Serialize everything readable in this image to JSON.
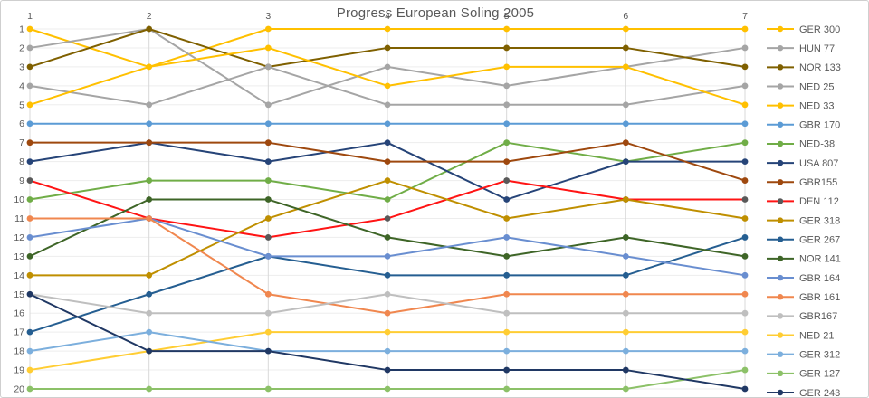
{
  "title": "Progress European Soling 2005",
  "chart_data": {
    "type": "line",
    "title": "Progress European Soling 2005",
    "xlabel": "",
    "ylabel": "",
    "x": [
      1,
      2,
      3,
      4,
      5,
      6,
      7
    ],
    "x_tick_labels": [
      "1",
      "2",
      "3",
      "4",
      "5",
      "6",
      "7"
    ],
    "y_axis": {
      "min": 1,
      "max": 20,
      "inverted": true,
      "ticks": [
        1,
        2,
        3,
        4,
        5,
        6,
        7,
        8,
        9,
        10,
        11,
        12,
        13,
        14,
        15,
        16,
        17,
        18,
        19,
        20
      ]
    },
    "grid": true,
    "legend_position": "right",
    "grid_color_h": "#ededed",
    "grid_color_v": "#d9d9d9",
    "tick_color": "#595959",
    "series": [
      {
        "name": "GER 300",
        "color": "#FFC000",
        "ranks": [
          1,
          3,
          1,
          1,
          1,
          1,
          1
        ]
      },
      {
        "name": "HUN 77",
        "color": "#A5A5A5",
        "ranks": [
          2,
          1,
          5,
          3,
          4,
          3,
          2
        ]
      },
      {
        "name": "NOR 133",
        "color": "#7F6000",
        "ranks": [
          3,
          1,
          3,
          2,
          2,
          2,
          3
        ]
      },
      {
        "name": "NED 25",
        "color": "#A5A5A5",
        "ranks": [
          4,
          5,
          3,
          5,
          5,
          5,
          4
        ]
      },
      {
        "name": "NED 33",
        "color": "#FFC000",
        "ranks": [
          5,
          3,
          2,
          4,
          3,
          3,
          5
        ]
      },
      {
        "name": "GBR 170",
        "color": "#5B9BD5",
        "ranks": [
          6,
          6,
          6,
          6,
          6,
          6,
          6
        ]
      },
      {
        "name": "NED-38",
        "color": "#70AD47",
        "ranks": [
          10,
          9,
          9,
          10,
          7,
          8,
          7
        ]
      },
      {
        "name": "USA 807",
        "color": "#264478",
        "ranks": [
          8,
          7,
          8,
          7,
          10,
          8,
          8
        ]
      },
      {
        "name": "GBR155",
        "color": "#9E480E",
        "ranks": [
          7,
          7,
          7,
          8,
          8,
          7,
          9
        ]
      },
      {
        "name": "DEN 112",
        "color": "#FF1414",
        "marker_color": "#595959",
        "ranks": [
          9,
          11,
          12,
          11,
          9,
          10,
          10
        ]
      },
      {
        "name": "GER 318",
        "color": "#BF8F00",
        "ranks": [
          14,
          14,
          11,
          9,
          11,
          10,
          11
        ]
      },
      {
        "name": "GER 267",
        "color": "#255E91",
        "ranks": [
          17,
          15,
          13,
          14,
          14,
          14,
          12
        ]
      },
      {
        "name": "NOR 141",
        "color": "#3E6527",
        "ranks": [
          13,
          10,
          10,
          12,
          13,
          12,
          13
        ]
      },
      {
        "name": "GBR 164",
        "color": "#698ED0",
        "ranks": [
          12,
          11,
          13,
          13,
          12,
          13,
          14
        ]
      },
      {
        "name": "GBR 161",
        "color": "#F0874F",
        "ranks": [
          11,
          11,
          15,
          16,
          15,
          15,
          15
        ]
      },
      {
        "name": "GBR167",
        "color": "#BFBFBF",
        "ranks": [
          15,
          16,
          16,
          15,
          16,
          16,
          16
        ]
      },
      {
        "name": "NED 21",
        "color": "#FFCD33",
        "ranks": [
          19,
          18,
          17,
          17,
          17,
          17,
          17
        ]
      },
      {
        "name": "GER 312",
        "color": "#7CAFDD",
        "ranks": [
          18,
          17,
          18,
          18,
          18,
          18,
          18
        ]
      },
      {
        "name": "GER 127",
        "color": "#8CC168",
        "ranks": [
          20,
          20,
          20,
          20,
          20,
          20,
          19
        ]
      },
      {
        "name": "GER 243",
        "color": "#203864",
        "ranks": [
          15,
          18,
          18,
          19,
          19,
          19,
          20
        ]
      }
    ]
  }
}
